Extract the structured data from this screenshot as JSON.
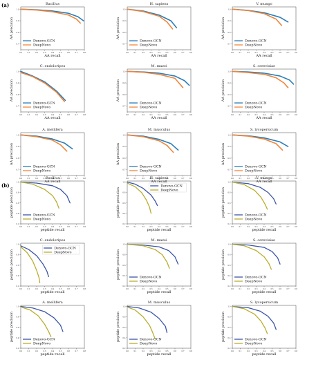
{
  "sections": [
    {
      "label": "(a)",
      "xlabel": "AA recall",
      "ylabel": "AA precision"
    },
    {
      "label": "(b)",
      "xlabel": "peptide recall",
      "ylabel": "peptide precision"
    }
  ],
  "colors": {
    "a_gcn": "#2a7db8",
    "a_deepnovo": "#f0853a",
    "b_gcn": "#3b55a6",
    "b_deepnovo": "#b9ad2e"
  },
  "chart_data": [
    {
      "type": "line",
      "panel": "a",
      "title": "Bacillus",
      "xlabel": "AA recall",
      "ylabel": "AA precision",
      "legend": "bottom-left",
      "series": [
        {
          "name": "Denovo-GCN",
          "x": [
            0,
            0.2,
            0.4,
            0.6,
            0.72,
            0.79
          ],
          "y": [
            1.0,
            0.995,
            0.985,
            0.965,
            0.935,
            0.9
          ]
        },
        {
          "name": "DeepNovo",
          "x": [
            0,
            0.2,
            0.4,
            0.6,
            0.7,
            0.75
          ],
          "y": [
            1.0,
            0.993,
            0.978,
            0.95,
            0.915,
            0.88
          ]
        }
      ]
    },
    {
      "type": "line",
      "panel": "a",
      "title": "H. sapiens",
      "xlabel": "AA recall",
      "ylabel": "AA precision",
      "legend": "bottom-left",
      "series": [
        {
          "name": "Denovo-GCN",
          "x": [
            0,
            0.2,
            0.4,
            0.55,
            0.62
          ],
          "y": [
            1.0,
            0.985,
            0.95,
            0.9,
            0.84
          ]
        },
        {
          "name": "DeepNovo",
          "x": [
            0,
            0.2,
            0.4,
            0.5,
            0.57
          ],
          "y": [
            1.0,
            0.98,
            0.94,
            0.89,
            0.83
          ]
        }
      ]
    },
    {
      "type": "line",
      "panel": "a",
      "title": "V. mungo",
      "xlabel": "AA recall",
      "ylabel": "AA precision",
      "legend": "bottom-left",
      "series": [
        {
          "name": "Denovo-GCN",
          "x": [
            0,
            0.2,
            0.4,
            0.6,
            0.7
          ],
          "y": [
            1.0,
            0.99,
            0.97,
            0.93,
            0.89
          ]
        },
        {
          "name": "DeepNovo",
          "x": [
            0,
            0.2,
            0.4,
            0.55,
            0.62
          ],
          "y": [
            1.0,
            0.988,
            0.962,
            0.915,
            0.86
          ]
        }
      ]
    },
    {
      "type": "line",
      "panel": "a",
      "title": "C. endoloripes",
      "xlabel": "AA recall",
      "ylabel": "AA precision",
      "legend": "bottom-left",
      "series": [
        {
          "name": "Denovo-GCN",
          "x": [
            0,
            0.15,
            0.3,
            0.45,
            0.56
          ],
          "y": [
            1.0,
            0.96,
            0.91,
            0.83,
            0.75
          ]
        },
        {
          "name": "DeepNovo",
          "x": [
            0,
            0.15,
            0.3,
            0.45,
            0.55
          ],
          "y": [
            0.99,
            0.955,
            0.9,
            0.82,
            0.74
          ]
        }
      ]
    },
    {
      "type": "line",
      "panel": "a",
      "title": "M. mazei",
      "xlabel": "AA recall",
      "ylabel": "AA precision",
      "legend": "bottom-left",
      "series": [
        {
          "name": "Denovo-GCN",
          "x": [
            0,
            0.2,
            0.4,
            0.6,
            0.72,
            0.78
          ],
          "y": [
            1.0,
            0.995,
            0.985,
            0.96,
            0.92,
            0.88
          ]
        },
        {
          "name": "DeepNovo",
          "x": [
            0,
            0.2,
            0.4,
            0.6,
            0.7
          ],
          "y": [
            1.0,
            0.993,
            0.975,
            0.94,
            0.86
          ]
        }
      ]
    },
    {
      "type": "line",
      "panel": "a",
      "title": "S. cerevisiae",
      "xlabel": "AA recall",
      "ylabel": "AA precision",
      "legend": "bottom-left",
      "series": [
        {
          "name": "Denovo-GCN",
          "x": [
            0,
            0.2,
            0.4,
            0.6,
            0.72,
            0.77
          ],
          "y": [
            1.0,
            0.995,
            0.985,
            0.96,
            0.925,
            0.89
          ]
        },
        {
          "name": "DeepNovo",
          "x": [
            0,
            0.2,
            0.4,
            0.55,
            0.65,
            0.7
          ],
          "y": [
            1.0,
            0.99,
            0.975,
            0.945,
            0.9,
            0.86
          ]
        }
      ]
    },
    {
      "type": "line",
      "panel": "a",
      "title": "A. mellifera",
      "xlabel": "AA recall",
      "ylabel": "AA precision",
      "legend": "bottom-left",
      "series": [
        {
          "name": "Denovo-GCN",
          "x": [
            0,
            0.2,
            0.4,
            0.55,
            0.65
          ],
          "y": [
            1.0,
            0.99,
            0.965,
            0.93,
            0.88
          ]
        },
        {
          "name": "DeepNovo",
          "x": [
            0,
            0.2,
            0.4,
            0.5,
            0.58
          ],
          "y": [
            1.0,
            0.985,
            0.955,
            0.915,
            0.86
          ]
        }
      ]
    },
    {
      "type": "line",
      "panel": "a",
      "title": "M. musculus",
      "xlabel": "AA recall",
      "ylabel": "AA precision",
      "legend": "bottom-left",
      "series": [
        {
          "name": "Denovo-GCN",
          "x": [
            0,
            0.2,
            0.4,
            0.55,
            0.64
          ],
          "y": [
            1.0,
            0.99,
            0.962,
            0.925,
            0.87
          ]
        },
        {
          "name": "DeepNovo",
          "x": [
            0,
            0.2,
            0.4,
            0.5,
            0.58
          ],
          "y": [
            1.0,
            0.985,
            0.95,
            0.91,
            0.85
          ]
        }
      ]
    },
    {
      "type": "line",
      "panel": "a",
      "title": "S. lycopersicum",
      "xlabel": "AA recall",
      "ylabel": "AA precision",
      "legend": "bottom-left",
      "series": [
        {
          "name": "Denovo-GCN",
          "x": [
            0,
            0.2,
            0.4,
            0.6,
            0.7
          ],
          "y": [
            1.0,
            0.993,
            0.975,
            0.94,
            0.9
          ]
        },
        {
          "name": "DeepNovo",
          "x": [
            0,
            0.2,
            0.4,
            0.55,
            0.63
          ],
          "y": [
            1.0,
            0.99,
            0.965,
            0.925,
            0.87
          ]
        }
      ]
    },
    {
      "type": "line",
      "panel": "b",
      "title": "Bacillus",
      "xlabel": "peptide recall",
      "ylabel": "peptide precision",
      "legend": "bottom-left",
      "series": [
        {
          "name": "Denovo-GCN",
          "x": [
            0,
            0.2,
            0.4,
            0.5,
            0.58,
            0.62
          ],
          "y": [
            1.0,
            0.98,
            0.93,
            0.86,
            0.74,
            0.6
          ]
        },
        {
          "name": "DeepNovo",
          "x": [
            0,
            0.15,
            0.3,
            0.4,
            0.45,
            0.48
          ],
          "y": [
            1.0,
            0.96,
            0.86,
            0.74,
            0.62,
            0.5
          ]
        }
      ]
    },
    {
      "type": "line",
      "panel": "b",
      "title": "H. sapiens",
      "xlabel": "peptide recall",
      "ylabel": "peptide precision",
      "legend": "top-right",
      "series": [
        {
          "name": "Denovo-GCN",
          "x": [
            0,
            0.1,
            0.2,
            0.3,
            0.35,
            0.38
          ],
          "y": [
            1.0,
            0.96,
            0.88,
            0.75,
            0.64,
            0.55
          ]
        },
        {
          "name": "DeepNovo",
          "x": [
            0,
            0.1,
            0.18,
            0.24,
            0.28,
            0.3
          ],
          "y": [
            0.98,
            0.91,
            0.8,
            0.66,
            0.52,
            0.4
          ]
        }
      ]
    },
    {
      "type": "line",
      "panel": "b",
      "title": "V. mungo",
      "xlabel": "peptide recall",
      "ylabel": "peptide precision",
      "legend": "bottom-left",
      "series": [
        {
          "name": "Denovo-GCN",
          "x": [
            0,
            0.2,
            0.35,
            0.45,
            0.52,
            0.55
          ],
          "y": [
            1.0,
            0.97,
            0.9,
            0.8,
            0.68,
            0.58
          ]
        },
        {
          "name": "DeepNovo",
          "x": [
            0,
            0.15,
            0.28,
            0.36,
            0.41,
            0.44
          ],
          "y": [
            1.0,
            0.95,
            0.84,
            0.71,
            0.58,
            0.48
          ]
        }
      ]
    },
    {
      "type": "line",
      "panel": "b",
      "title": "C. endoloripes",
      "xlabel": "peptide recall",
      "ylabel": "peptide precision",
      "legend": "top-right",
      "series": [
        {
          "name": "Denovo-GCN",
          "x": [
            0,
            0.1,
            0.2,
            0.28,
            0.33,
            0.35
          ],
          "y": [
            0.97,
            0.9,
            0.78,
            0.62,
            0.48,
            0.38
          ]
        },
        {
          "name": "DeepNovo",
          "x": [
            0,
            0.08,
            0.15,
            0.2,
            0.23,
            0.24
          ],
          "y": [
            0.95,
            0.84,
            0.68,
            0.5,
            0.36,
            0.26
          ]
        }
      ]
    },
    {
      "type": "line",
      "panel": "b",
      "title": "M. mazei",
      "xlabel": "peptide recall",
      "ylabel": "peptide precision",
      "legend": "bottom-left",
      "series": [
        {
          "name": "Denovo-GCN",
          "x": [
            0,
            0.2,
            0.4,
            0.52,
            0.6,
            0.64
          ],
          "y": [
            1.0,
            0.985,
            0.95,
            0.88,
            0.76,
            0.62
          ]
        },
        {
          "name": "DeepNovo",
          "x": [
            0,
            0.2,
            0.35,
            0.44,
            0.5,
            0.53
          ],
          "y": [
            1.0,
            0.97,
            0.9,
            0.8,
            0.66,
            0.54
          ]
        }
      ]
    },
    {
      "type": "line",
      "panel": "b",
      "title": "S. cerevisiae",
      "xlabel": "peptide recall",
      "ylabel": "peptide precision",
      "legend": "bottom-left",
      "series": [
        {
          "name": "Denovo-GCN",
          "x": [
            0,
            0.2,
            0.4,
            0.5,
            0.57,
            0.6
          ],
          "y": [
            1.0,
            0.985,
            0.94,
            0.86,
            0.74,
            0.62
          ]
        },
        {
          "name": "DeepNovo",
          "x": [
            0,
            0.15,
            0.3,
            0.4,
            0.46,
            0.49
          ],
          "y": [
            1.0,
            0.97,
            0.88,
            0.76,
            0.63,
            0.52
          ]
        }
      ]
    },
    {
      "type": "line",
      "panel": "b",
      "title": "A. mellifera",
      "xlabel": "peptide recall",
      "ylabel": "peptide precision",
      "legend": "bottom-left",
      "series": [
        {
          "name": "Denovo-GCN",
          "x": [
            0,
            0.15,
            0.3,
            0.42,
            0.5,
            0.53
          ],
          "y": [
            1.0,
            0.97,
            0.9,
            0.78,
            0.64,
            0.52
          ]
        },
        {
          "name": "DeepNovo",
          "x": [
            0,
            0.12,
            0.22,
            0.3,
            0.35,
            0.38
          ],
          "y": [
            0.99,
            0.93,
            0.82,
            0.66,
            0.52,
            0.42
          ]
        }
      ]
    },
    {
      "type": "line",
      "panel": "b",
      "title": "M. musculus",
      "xlabel": "peptide recall",
      "ylabel": "peptide precision",
      "legend": "bottom-left",
      "series": [
        {
          "name": "Denovo-GCN",
          "x": [
            0,
            0.15,
            0.3,
            0.4,
            0.48,
            0.5
          ],
          "y": [
            1.0,
            0.97,
            0.89,
            0.77,
            0.62,
            0.5
          ]
        },
        {
          "name": "DeepNovo",
          "x": [
            0,
            0.1,
            0.2,
            0.28,
            0.32,
            0.35
          ],
          "y": [
            0.99,
            0.93,
            0.8,
            0.64,
            0.5,
            0.38
          ]
        }
      ]
    },
    {
      "type": "line",
      "panel": "b",
      "title": "S. lycopersicum",
      "xlabel": "peptide recall",
      "ylabel": "peptide precision",
      "legend": "bottom-left",
      "series": [
        {
          "name": "Denovo-GCN",
          "x": [
            0,
            0.2,
            0.35,
            0.45,
            0.52,
            0.55
          ],
          "y": [
            1.0,
            0.975,
            0.91,
            0.81,
            0.68,
            0.56
          ]
        },
        {
          "name": "DeepNovo",
          "x": [
            0,
            0.15,
            0.28,
            0.36,
            0.41,
            0.44
          ],
          "y": [
            1.0,
            0.955,
            0.85,
            0.72,
            0.59,
            0.48
          ]
        }
      ]
    }
  ]
}
